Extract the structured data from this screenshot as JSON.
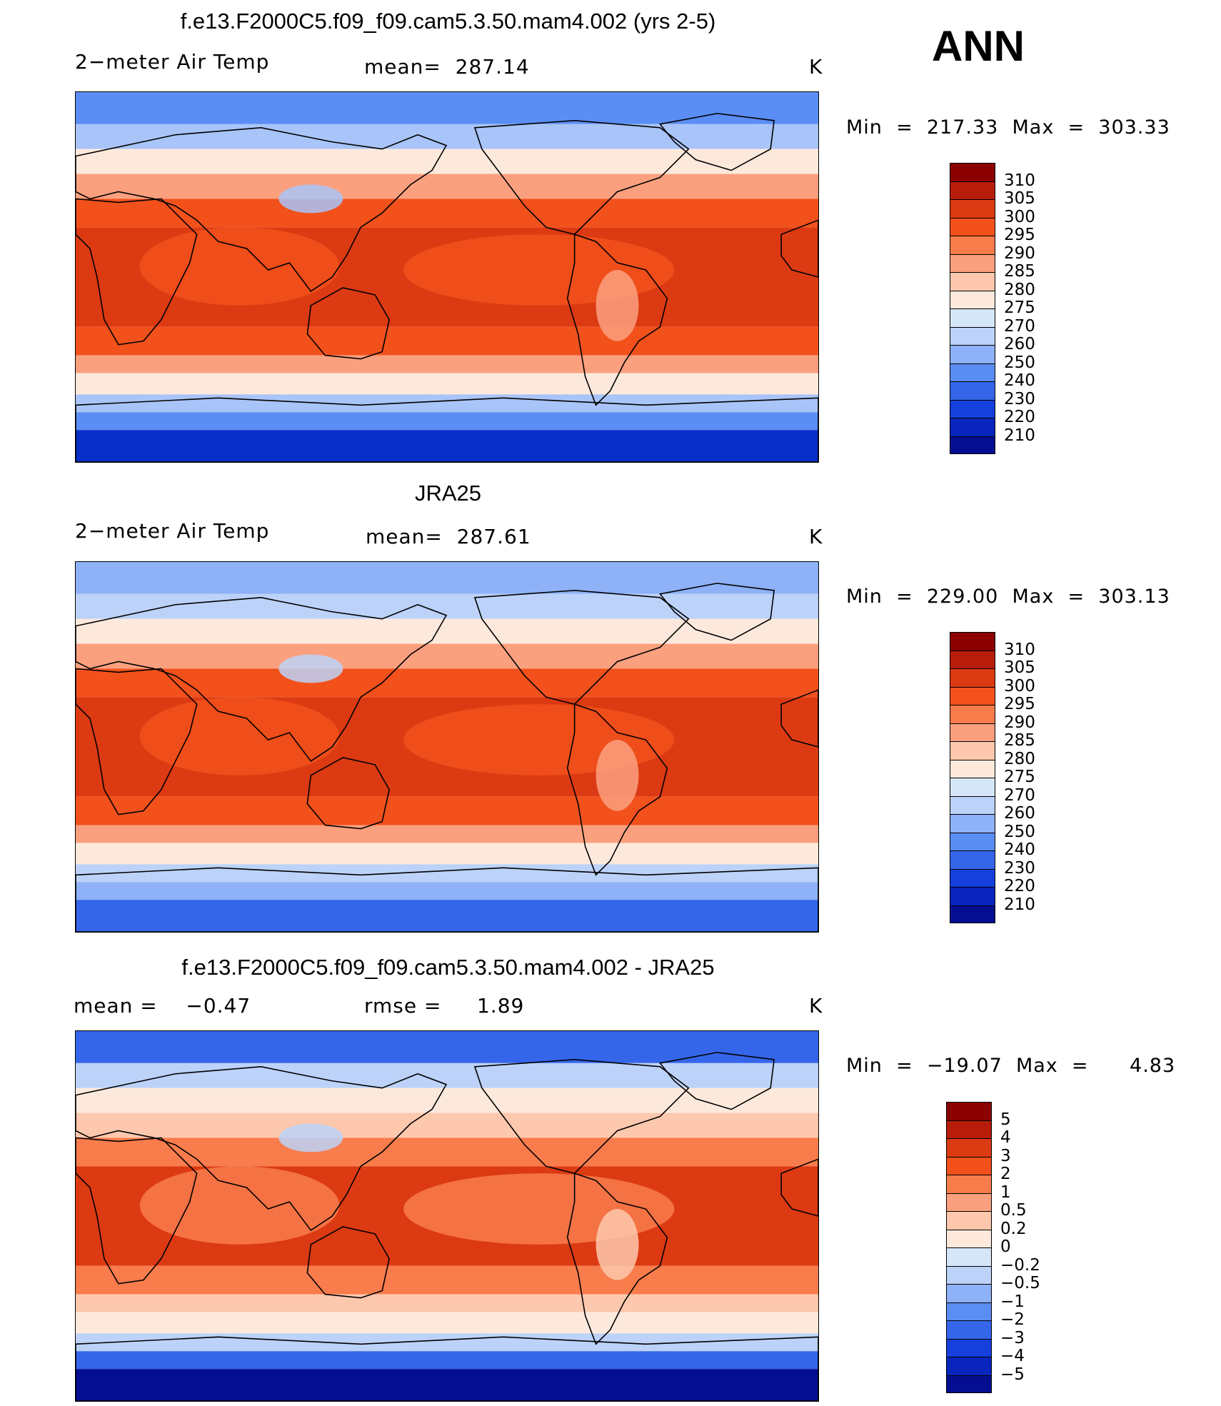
{
  "season": "ANN",
  "panels": [
    {
      "title": "f.e13.F2000C5.f09_f09.cam5.3.50.mam4.002 (yrs 2-5)",
      "left_label": "2−meter Air Temp",
      "center_label": "mean=  287.14",
      "units": "K",
      "min_max": "Min  =  217.33  Max  =  303.33",
      "colorbar": {
        "colors": [
          "#8b0000",
          "#b81d0b",
          "#dc3a12",
          "#f2511b",
          "#f87c4c",
          "#fba07f",
          "#fdc8ad",
          "#fde9dc",
          "#d6e6f9",
          "#bcd2f8",
          "#8eb1f7",
          "#5b8ef4",
          "#3566ea",
          "#1540dd",
          "#0925bd",
          "#050e90"
        ],
        "ticks": [
          "310",
          "305",
          "300",
          "295",
          "290",
          "285",
          "280",
          "275",
          "270",
          "260",
          "250",
          "240",
          "230",
          "220",
          "210"
        ]
      },
      "map_palette": {
        "polar": "#0a2fc8",
        "cold": "#5b8ef4",
        "cool": "#a9c4f8",
        "mild": "#fde9dc",
        "warm": "#fba07f",
        "hot": "#f2511b",
        "hottest": "#dc3a12"
      }
    },
    {
      "title": "JRA25",
      "left_label": "2−meter Air Temp",
      "center_label": "mean=  287.61",
      "units": "K",
      "min_max": "Min  =  229.00  Max  =  303.13",
      "colorbar": {
        "colors": [
          "#8b0000",
          "#b81d0b",
          "#dc3a12",
          "#f2511b",
          "#f87c4c",
          "#fba07f",
          "#fdc8ad",
          "#fde9dc",
          "#d6e6f9",
          "#bcd2f8",
          "#8eb1f7",
          "#5b8ef4",
          "#3566ea",
          "#1540dd",
          "#0925bd",
          "#050e90"
        ],
        "ticks": [
          "310",
          "305",
          "300",
          "295",
          "290",
          "285",
          "280",
          "275",
          "270",
          "260",
          "250",
          "240",
          "230",
          "220",
          "210"
        ]
      },
      "map_palette": {
        "polar": "#3566ea",
        "cold": "#8eb1f7",
        "cool": "#bcd2f8",
        "mild": "#fde9dc",
        "warm": "#fba07f",
        "hot": "#f2511b",
        "hottest": "#dc3a12"
      }
    },
    {
      "title": "f.e13.F2000C5.f09_f09.cam5.3.50.mam4.002 - JRA25",
      "left_label": "mean =    −0.47",
      "center_label": "rmse =     1.89",
      "units": "K",
      "min_max": "Min  =  −19.07  Max  =      4.83",
      "colorbar": {
        "colors": [
          "#8b0000",
          "#b81d0b",
          "#dc3a12",
          "#f2511b",
          "#f87c4c",
          "#fba07f",
          "#fdc8ad",
          "#fde9dc",
          "#d6e6f9",
          "#bcd2f8",
          "#8eb1f7",
          "#5b8ef4",
          "#3566ea",
          "#1540dd",
          "#0925bd",
          "#050e90"
        ],
        "ticks": [
          "5",
          "4",
          "3",
          "2",
          "1",
          "0.5",
          "0.2",
          "0",
          "−0.2",
          "−0.5",
          "−1",
          "−2",
          "−3",
          "−4",
          "−5"
        ]
      },
      "map_palette": {
        "polar": "#050e90",
        "cold": "#3566ea",
        "cool": "#bcd2f8",
        "mild": "#fde9dc",
        "warm": "#fdc8ad",
        "hot": "#f87c4c",
        "hottest": "#dc3a12"
      }
    }
  ]
}
